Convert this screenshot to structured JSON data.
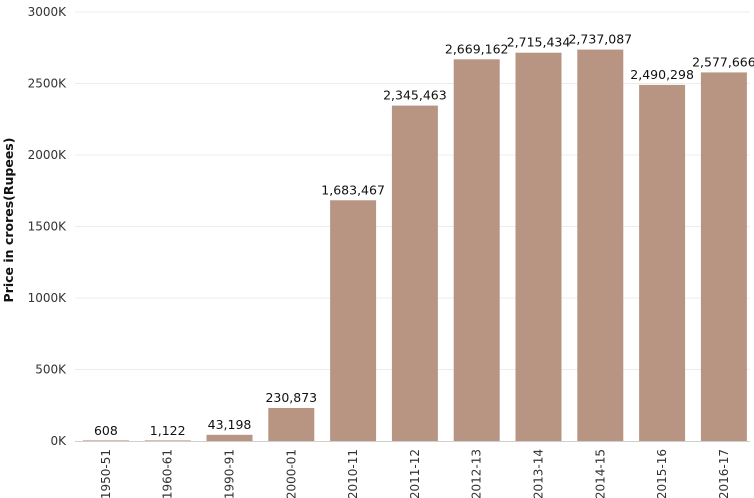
{
  "chart_data": {
    "type": "bar",
    "title": "",
    "xlabel": "",
    "ylabel": "Price in crores(Rupees)",
    "categories": [
      "1950-51",
      "1960-61",
      "1990-91",
      "2000-01",
      "2010-11",
      "2011-12",
      "2012-13",
      "2013-14",
      "2014-15",
      "2015-16",
      "2016-17"
    ],
    "values": [
      608,
      1122,
      43198,
      230873,
      1683467,
      2345463,
      2669162,
      2715434,
      2737087,
      2490298,
      2577666
    ],
    "value_labels": [
      "608",
      "1,122",
      "43,198",
      "230,873",
      "1,683,467",
      "2,345,463",
      "2,669,162",
      "2,715,434",
      "2,737,087",
      "2,490,298",
      "2,577,666"
    ],
    "yticks": [
      0,
      500000,
      1000000,
      1500000,
      2000000,
      2500000,
      3000000
    ],
    "ytick_labels": [
      "0K",
      "500K",
      "1000K",
      "1500K",
      "2000K",
      "2500K",
      "3000K"
    ],
    "ylim": [
      0,
      3000000
    ],
    "grid": true,
    "bar_color": "#b89582",
    "grid_color": "#ececec"
  }
}
